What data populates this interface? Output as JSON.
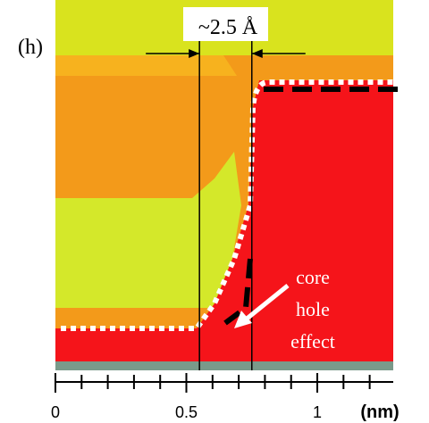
{
  "chart_data": {
    "type": "contour",
    "panel_label": "(h)",
    "annotation": "~2.5 Å",
    "effect_label": [
      "core",
      "hole",
      "effect"
    ],
    "xlabel": "(nm)",
    "xlim": [
      0,
      1.29
    ],
    "xticks": [
      0,
      0.5,
      1
    ],
    "xminorticks": [
      0.1,
      0.2,
      0.3,
      0.4,
      0.6,
      0.7,
      0.8,
      0.9,
      1.1,
      1.2
    ],
    "markers": [
      0.55,
      0.75
    ],
    "colors": {
      "background": "#f39a1a",
      "top": "#d9e31e",
      "left_block": "#d4e82a",
      "red": "#f5141a",
      "dotted": "#ffffff",
      "dashed": "#000000"
    }
  }
}
